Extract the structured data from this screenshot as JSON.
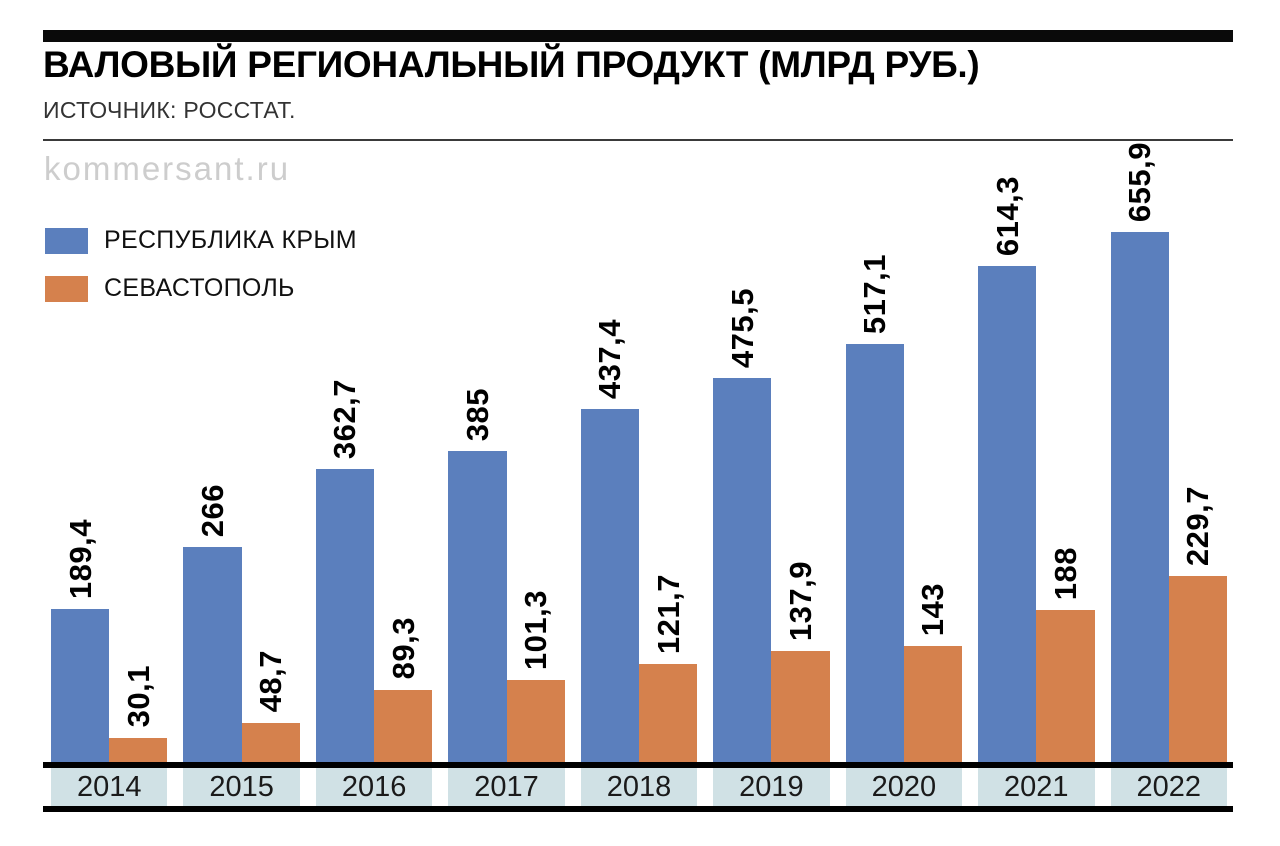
{
  "page": {
    "watermark": "kommersant.ru"
  },
  "header": {
    "title": "ВАЛОВЫЙ РЕГИОНАЛЬНЫЙ ПРОДУКТ (МЛРД РУБ.)",
    "source": "ИСТОЧНИК: РОССТАТ."
  },
  "legend": {
    "items": [
      {
        "label": "РЕСПУБЛИКА КРЫМ",
        "color": "#5b7fbd"
      },
      {
        "label": "СЕВАСТОПОЛЬ",
        "color": "#d5814d"
      }
    ]
  },
  "chart_data": {
    "type": "bar",
    "title": "ВАЛОВЫЙ РЕГИОНАЛЬНЫЙ ПРОДУКТ (МЛРД РУБ.)",
    "unit": "млрд руб.",
    "source": "РОССТАТ",
    "categories": [
      "2014",
      "2015",
      "2016",
      "2017",
      "2018",
      "2019",
      "2020",
      "2021",
      "2022"
    ],
    "series": [
      {
        "name": "РЕСПУБЛИКА КРЫМ",
        "color": "#5b7fbd",
        "values": [
          189.4,
          266,
          362.7,
          385,
          437.4,
          475.5,
          517.1,
          614.3,
          655.9
        ],
        "labels": [
          "189,4",
          "266",
          "362,7",
          "385",
          "437,4",
          "475,5",
          "517,1",
          "614,3",
          "655,9"
        ]
      },
      {
        "name": "СЕВАСТОПОЛЬ",
        "color": "#d5814d",
        "values": [
          30.1,
          48.7,
          89.3,
          101.3,
          121.7,
          137.9,
          143,
          188,
          229.7
        ],
        "labels": [
          "30,1",
          "48,7",
          "89,3",
          "101,3",
          "121,7",
          "137,9",
          "143",
          "188",
          "229,7"
        ]
      }
    ],
    "xlabel": "",
    "ylabel": "",
    "ylim": [
      0,
      660
    ],
    "grid": false,
    "legend_position": "top-left",
    "value_labels": "rotated-90-above-bars",
    "band_color": "#d0e1e5"
  }
}
